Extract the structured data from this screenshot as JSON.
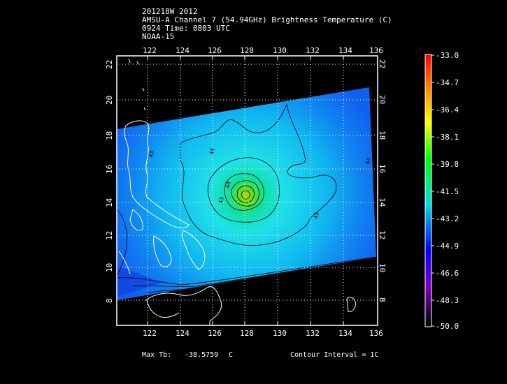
{
  "header": {
    "storm": "201218W 2012",
    "product": "AMSU-A Channel 7 (54.94GHz) Brightness Temperature (C)",
    "time": "0924 Time: 0803 UTC",
    "satellite": "NOAA-15"
  },
  "map": {
    "lon_ticks": [
      "122",
      "124",
      "126",
      "128",
      "130",
      "132",
      "134",
      "136"
    ],
    "lat_ticks": [
      "8",
      "10",
      "12",
      "14",
      "16",
      "18",
      "20",
      "22"
    ],
    "contour_labels": [
      "44",
      "43",
      "43",
      "44",
      "44",
      "43"
    ]
  },
  "colorbar": {
    "labels": [
      "-33.0",
      "-34.7",
      "-36.4",
      "-38.1",
      "-39.8",
      "-41.5",
      "-43.2",
      "-44.9",
      "-46.6",
      "-48.3",
      "-50.0"
    ],
    "colors": [
      "#ff0000",
      "#ffa000",
      "#ffff00",
      "#00ff00",
      "#00e0e0",
      "#0000ff",
      "#8000c0",
      "#000000"
    ]
  },
  "footer": {
    "max_label": "Max Tb:",
    "max_value": "-38.5759",
    "max_unit": "C",
    "contour_interval": "Contour Interval = 1C"
  }
}
